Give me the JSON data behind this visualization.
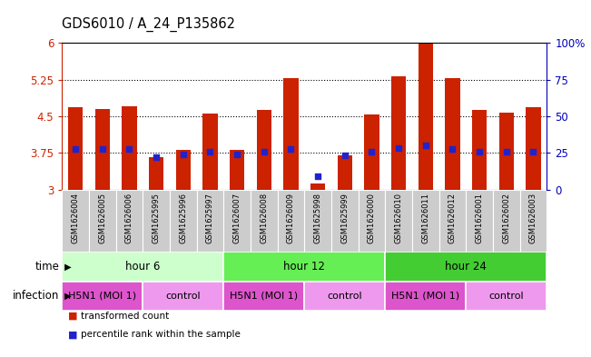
{
  "title": "GDS6010 / A_24_P135862",
  "samples": [
    "GSM1626004",
    "GSM1626005",
    "GSM1626006",
    "GSM1625995",
    "GSM1625996",
    "GSM1625997",
    "GSM1626007",
    "GSM1626008",
    "GSM1626009",
    "GSM1625998",
    "GSM1625999",
    "GSM1626000",
    "GSM1626010",
    "GSM1626011",
    "GSM1626012",
    "GSM1626001",
    "GSM1626002",
    "GSM1626003"
  ],
  "bar_heights": [
    4.68,
    4.65,
    4.7,
    3.67,
    3.82,
    4.55,
    3.82,
    4.63,
    5.27,
    3.12,
    3.7,
    4.53,
    5.32,
    5.98,
    5.27,
    4.62,
    4.57,
    4.68
  ],
  "blue_dot_y": [
    3.83,
    3.83,
    3.83,
    3.67,
    3.72,
    3.78,
    3.72,
    3.78,
    3.83,
    3.28,
    3.7,
    3.77,
    3.85,
    3.9,
    3.83,
    3.78,
    3.78,
    3.78
  ],
  "ylim": [
    3.0,
    6.0
  ],
  "yticks_left": [
    3.0,
    3.75,
    4.5,
    5.25,
    6.0
  ],
  "yticklabels_left": [
    "3",
    "3.75",
    "4.5",
    "5.25",
    "6"
  ],
  "right_axis_ticks": [
    0,
    25,
    50,
    75,
    100
  ],
  "right_axis_labels": [
    "0",
    "25",
    "50",
    "75",
    "100%"
  ],
  "bar_color": "#cc2200",
  "dot_color": "#2222cc",
  "grid_yticks": [
    3.75,
    4.5,
    5.25
  ],
  "label_color_left": "#cc2200",
  "label_color_right": "#0000bb",
  "sample_bg_color": "#cccccc",
  "time_segments": [
    {
      "start": 0,
      "end": 6,
      "label": "hour 6",
      "color": "#ccffcc"
    },
    {
      "start": 6,
      "end": 12,
      "label": "hour 12",
      "color": "#66ee55"
    },
    {
      "start": 12,
      "end": 18,
      "label": "hour 24",
      "color": "#44cc33"
    }
  ],
  "infect_segments": [
    {
      "start": 0,
      "end": 3,
      "label": "H5N1 (MOI 1)",
      "color": "#dd55cc"
    },
    {
      "start": 3,
      "end": 6,
      "label": "control",
      "color": "#ee99ee"
    },
    {
      "start": 6,
      "end": 9,
      "label": "H5N1 (MOI 1)",
      "color": "#dd55cc"
    },
    {
      "start": 9,
      "end": 12,
      "label": "control",
      "color": "#ee99ee"
    },
    {
      "start": 12,
      "end": 15,
      "label": "H5N1 (MOI 1)",
      "color": "#dd55cc"
    },
    {
      "start": 15,
      "end": 18,
      "label": "control",
      "color": "#ee99ee"
    }
  ],
  "legend": [
    {
      "color": "#cc2200",
      "label": "transformed count"
    },
    {
      "color": "#2222cc",
      "label": "percentile rank within the sample"
    }
  ]
}
